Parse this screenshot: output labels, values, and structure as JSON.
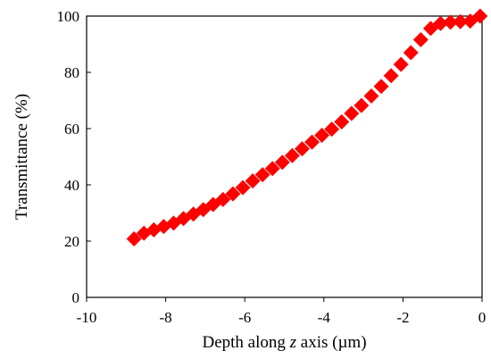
{
  "chart_data": {
    "type": "scatter",
    "title": "",
    "xlabel_prefix": "Depth along ",
    "xlabel_var": "z",
    "xlabel_suffix": " axis (µm)",
    "ylabel": "Transmittance (%)",
    "xlim": [
      -10,
      0
    ],
    "ylim": [
      0,
      100
    ],
    "xticks": [
      -10,
      -8,
      -6,
      -4,
      -2,
      0
    ],
    "yticks": [
      0,
      20,
      40,
      60,
      80,
      100
    ],
    "grid": false,
    "legend": "none",
    "marker": "diamond",
    "marker_color": "#ff0000",
    "series": [
      {
        "x": [
          -8.8,
          -8.55,
          -8.3,
          -8.05,
          -7.8,
          -7.55,
          -7.3,
          -7.05,
          -6.8,
          -6.55,
          -6.3,
          -6.05,
          -5.8,
          -5.55,
          -5.3,
          -5.05,
          -4.8,
          -4.55,
          -4.3,
          -4.05,
          -3.8,
          -3.55,
          -3.3,
          -3.05,
          -2.8,
          -2.55,
          -2.3,
          -2.05,
          -1.8,
          -1.55,
          -1.3,
          -1.05,
          -0.8,
          -0.55,
          -0.3,
          -0.05
        ],
        "y": [
          20.8,
          22.8,
          24.0,
          25.2,
          26.4,
          28.0,
          29.6,
          31.2,
          33.0,
          34.8,
          36.8,
          39.0,
          41.4,
          43.6,
          45.8,
          48.0,
          50.4,
          52.8,
          55.2,
          57.6,
          59.8,
          62.4,
          65.4,
          68.2,
          71.6,
          75.0,
          78.8,
          82.8,
          87.0,
          91.6,
          95.6,
          97.4,
          97.8,
          98.0,
          98.2,
          100.0
        ]
      }
    ]
  }
}
